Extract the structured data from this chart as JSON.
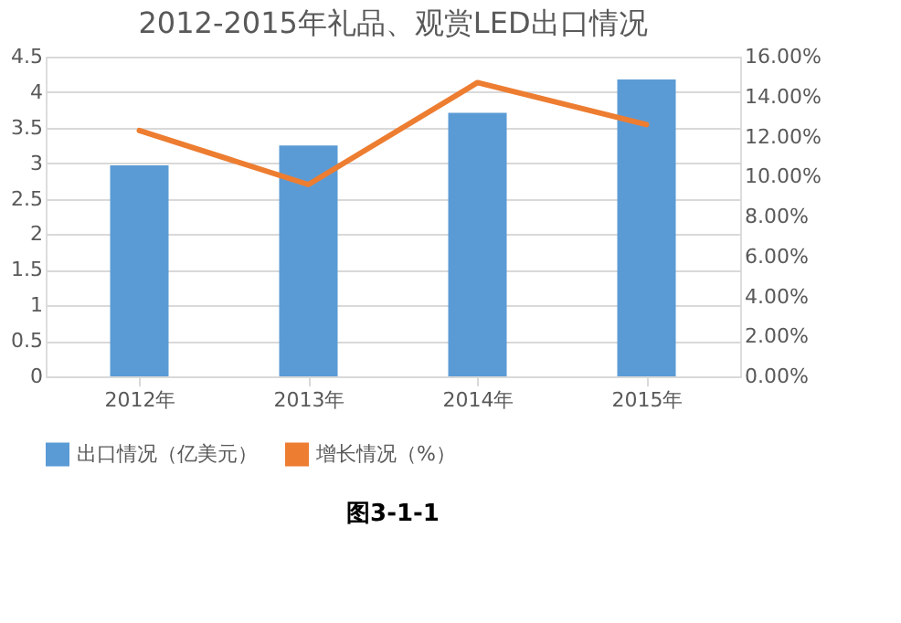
{
  "chart_data": {
    "type": "bar",
    "title": "2012-2015年礼品、观赏LED出口情况",
    "categories": [
      "2012年",
      "2013年",
      "2014年",
      "2015年"
    ],
    "series": [
      {
        "name": "出口情况（亿美元）",
        "color": "#5b9bd5",
        "values": [
          2.97,
          3.25,
          3.71,
          4.18
        ]
      },
      {
        "name": "增长情况（%）",
        "color": "#ed7d31",
        "type": "line",
        "axis": "y2",
        "values": [
          12.3,
          9.6,
          14.7,
          12.6
        ]
      }
    ],
    "ylim": [
      0,
      4.5
    ],
    "yticks": [
      0,
      0.5,
      1,
      1.5,
      2,
      2.5,
      3,
      3.5,
      4,
      4.5
    ],
    "y2lim": [
      0,
      16
    ],
    "y2ticks": [
      {
        "value": 0,
        "label": "0.00%"
      },
      {
        "value": 2,
        "label": "2.00%"
      },
      {
        "value": 4,
        "label": "4.00%"
      },
      {
        "value": 6,
        "label": "6.00%"
      },
      {
        "value": 8,
        "label": "8.00%"
      },
      {
        "value": 10,
        "label": "10.00%"
      },
      {
        "value": 12,
        "label": "12.00%"
      },
      {
        "value": 14,
        "label": "14.00%"
      },
      {
        "value": 16,
        "label": "16.00%"
      }
    ],
    "grid": "y",
    "legend": "bottom",
    "marker": "none",
    "line_style": "solid",
    "annotations": [
      "图3-1-1"
    ]
  }
}
